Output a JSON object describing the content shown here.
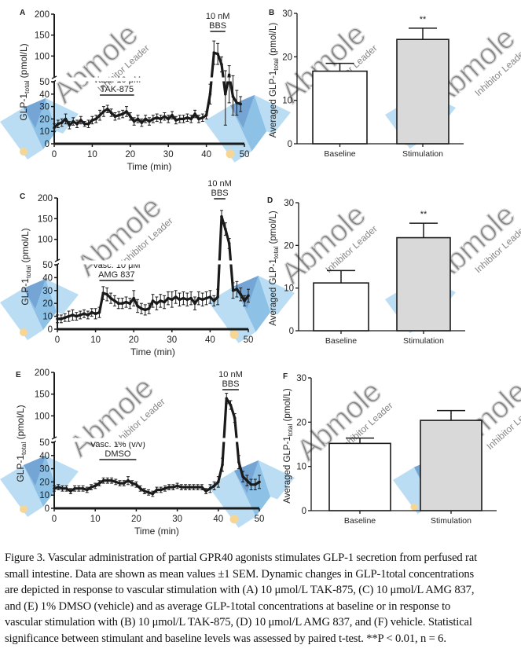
{
  "chart_data": [
    {
      "panel": "A",
      "type": "line",
      "xlabel": "Time (min)",
      "ylabel": "GLP-1total (pmol/L)",
      "ylabel_main": "GLP-1",
      "ylabel_sub": "total",
      "ylabel_unit": " (pmol/L)",
      "xlim": [
        0,
        50
      ],
      "xticks": [
        "0",
        "10",
        "20",
        "30",
        "40",
        "50"
      ],
      "ylim": [
        0,
        200
      ],
      "y_axis_break": [
        50,
        50
      ],
      "yticks_lower": [
        "0",
        "10",
        "20",
        "30",
        "40",
        "50"
      ],
      "yticks_upper": [
        "100",
        "150",
        "200"
      ],
      "annotations": [
        {
          "text_lines": [
            "Vasc. 10 μM",
            "TAK-875"
          ],
          "x_range": [
            12,
            21
          ]
        },
        {
          "text_lines": [
            "10 nM",
            "BBS"
          ],
          "x_range": [
            41,
            45
          ]
        }
      ],
      "x": [
        0,
        1,
        2,
        3,
        4,
        5,
        6,
        7,
        8,
        9,
        10,
        11,
        12,
        13,
        14,
        15,
        16,
        17,
        18,
        19,
        20,
        21,
        22,
        23,
        24,
        25,
        26,
        27,
        28,
        29,
        30,
        31,
        32,
        33,
        34,
        35,
        36,
        37,
        38,
        39,
        40,
        41,
        42,
        43,
        44,
        45,
        46,
        47,
        48,
        49
      ],
      "y": [
        13,
        16,
        17,
        20,
        15,
        18,
        16,
        19,
        16,
        16,
        19,
        20,
        23,
        26,
        28,
        25,
        22,
        23,
        24,
        26,
        22,
        18,
        20,
        17,
        20,
        18,
        20,
        21,
        20,
        22,
        20,
        23,
        19,
        20,
        20,
        21,
        20,
        24,
        20,
        21,
        23,
        40,
        108,
        105,
        80,
        40,
        55,
        38,
        33,
        32
      ],
      "sem": [
        3,
        3,
        3,
        4,
        3,
        3,
        3,
        3,
        2,
        3,
        3,
        3,
        4,
        4,
        3,
        3,
        3,
        3,
        3,
        4,
        3,
        3,
        3,
        3,
        3,
        3,
        3,
        3,
        3,
        3,
        3,
        3,
        3,
        3,
        3,
        3,
        3,
        3,
        3,
        3,
        3,
        8,
        28,
        25,
        18,
        25,
        22,
        15,
        10,
        6
      ]
    },
    {
      "panel": "B",
      "type": "bar",
      "categories": [
        "Baseline",
        "Stimulation"
      ],
      "values": [
        16.7,
        24.0
      ],
      "sem": [
        1.8,
        2.6
      ],
      "colors": [
        "#ffffff",
        "#d9d9d9"
      ],
      "significance": [
        null,
        "**"
      ],
      "ylabel": "Averaged GLP-1total (pmol/L)",
      "ylabel_main": "Averaged GLP-1",
      "ylabel_sub": "total",
      "ylabel_unit": " (pmol/L)",
      "ylim": [
        0,
        30
      ],
      "yticks": [
        "0",
        "10",
        "20",
        "30"
      ]
    },
    {
      "panel": "C",
      "type": "line",
      "xlabel": "Time (min)",
      "ylabel": "GLP-1total (pmol/L)",
      "ylabel_main": "GLP-1",
      "ylabel_sub": "total",
      "ylabel_unit": " (pmol/L)",
      "xlim": [
        0,
        50
      ],
      "xticks": [
        "0",
        "10",
        "20",
        "30",
        "40",
        "50"
      ],
      "ylim": [
        0,
        200
      ],
      "y_axis_break": [
        50,
        50
      ],
      "yticks_lower": [
        "0",
        "10",
        "20",
        "30",
        "40",
        "50"
      ],
      "yticks_upper": [
        "100",
        "150",
        "200"
      ],
      "annotations": [
        {
          "text_lines": [
            "Vasc. 10 μM",
            "AMG 837"
          ],
          "x_range": [
            11,
            20
          ]
        },
        {
          "text_lines": [
            "10 nM",
            "BBS"
          ],
          "x_range": [
            41,
            44
          ]
        }
      ],
      "x": [
        0,
        1,
        2,
        3,
        4,
        5,
        6,
        7,
        8,
        9,
        10,
        11,
        12,
        13,
        14,
        15,
        16,
        17,
        18,
        19,
        20,
        21,
        22,
        23,
        24,
        25,
        26,
        27,
        28,
        29,
        30,
        31,
        32,
        33,
        34,
        35,
        36,
        37,
        38,
        39,
        40,
        41,
        42,
        43,
        44,
        45,
        46,
        47,
        48,
        49,
        50
      ],
      "y": [
        8,
        8,
        9,
        10,
        11,
        10,
        11,
        12,
        11,
        13,
        12,
        13,
        28,
        27,
        24,
        22,
        20,
        20,
        21,
        20,
        24,
        18,
        16,
        15,
        16,
        22,
        20,
        22,
        21,
        24,
        23,
        25,
        23,
        24,
        23,
        24,
        20,
        24,
        23,
        24,
        25,
        22,
        25,
        155,
        125,
        90,
        30,
        31,
        27,
        22,
        26
      ],
      "sem": [
        3,
        3,
        3,
        4,
        4,
        3,
        3,
        3,
        3,
        3,
        4,
        4,
        5,
        5,
        4,
        4,
        4,
        4,
        4,
        4,
        6,
        5,
        4,
        4,
        4,
        5,
        5,
        5,
        5,
        5,
        6,
        5,
        5,
        5,
        5,
        5,
        5,
        5,
        5,
        5,
        5,
        4,
        6,
        15,
        15,
        12,
        6,
        6,
        5,
        4,
        5
      ]
    },
    {
      "panel": "D",
      "type": "bar",
      "categories": [
        "Baseline",
        "Stimulation"
      ],
      "values": [
        11.2,
        21.8
      ],
      "sem": [
        2.9,
        3.4
      ],
      "colors": [
        "#ffffff",
        "#d9d9d9"
      ],
      "significance": [
        null,
        "**"
      ],
      "ylabel": "Averaged GLP-1total (pmol/L)",
      "ylabel_main": "Averaged GLP-1",
      "ylabel_sub": "total",
      "ylabel_unit": " (pmol/L)",
      "ylim": [
        0,
        30
      ],
      "yticks": [
        "0",
        "10",
        "20",
        "30"
      ]
    },
    {
      "panel": "E",
      "type": "line",
      "xlabel": "Time (min)",
      "ylabel": "GLP-1total (pmol/L)",
      "ylabel_main": "GLP-1",
      "ylabel_sub": "total",
      "ylabel_unit": " (pmol/L)",
      "xlim": [
        0,
        50
      ],
      "xticks": [
        "0",
        "10",
        "20",
        "30",
        "40",
        "50"
      ],
      "ylim": [
        0,
        200
      ],
      "y_axis_break": [
        50,
        50
      ],
      "yticks_lower": [
        "0",
        "10",
        "20",
        "30",
        "40",
        "50"
      ],
      "yticks_upper": [
        "100",
        "150",
        "200"
      ],
      "annotations": [
        {
          "text_lines": [
            "Vasc. 1% (v/v)",
            "DMSO"
          ],
          "x_range": [
            11,
            20
          ]
        },
        {
          "text_lines": [
            "10 nM",
            "BBS"
          ],
          "x_range": [
            41,
            45
          ]
        }
      ],
      "x": [
        0,
        1,
        2,
        3,
        4,
        5,
        6,
        7,
        8,
        9,
        10,
        11,
        12,
        13,
        14,
        15,
        16,
        17,
        18,
        19,
        20,
        21,
        22,
        23,
        24,
        25,
        26,
        27,
        28,
        29,
        30,
        31,
        32,
        33,
        34,
        35,
        36,
        37,
        38,
        39,
        40,
        41,
        42,
        43,
        44,
        45,
        46,
        47,
        48,
        49,
        50
      ],
      "y": [
        15,
        16,
        15,
        15,
        13,
        15,
        15,
        15,
        14,
        16,
        17,
        19,
        21,
        21,
        21,
        20,
        19,
        19,
        21,
        19,
        18,
        15,
        13,
        12,
        11,
        14,
        14,
        15,
        16,
        16,
        17,
        16,
        16,
        16,
        16,
        16,
        16,
        13,
        15,
        17,
        20,
        33,
        140,
        125,
        95,
        35,
        24,
        21,
        18,
        18,
        20
      ],
      "sem": [
        2,
        2,
        2,
        2,
        2,
        2,
        2,
        2,
        2,
        2,
        2,
        2,
        2,
        2,
        2,
        2,
        2,
        2,
        3,
        2,
        2,
        2,
        2,
        2,
        2,
        2,
        2,
        2,
        2,
        2,
        2,
        2,
        2,
        2,
        2,
        2,
        2,
        2,
        3,
        3,
        4,
        5,
        12,
        10,
        10,
        5,
        4,
        4,
        4,
        4,
        5
      ]
    },
    {
      "panel": "F",
      "type": "bar",
      "categories": [
        "Baseline",
        "Stimulation"
      ],
      "values": [
        15.2,
        20.4
      ],
      "sem": [
        1.2,
        2.2
      ],
      "colors": [
        "#ffffff",
        "#d9d9d9"
      ],
      "significance": [
        null,
        null
      ],
      "ylabel": "Averaged GLP-1total (pmol/L)",
      "ylabel_main": "Averaged GLP-1",
      "ylabel_sub": "total",
      "ylabel_unit": " (pmol/L)",
      "ylim": [
        0,
        30
      ],
      "yticks": [
        "0",
        "10",
        "20",
        "30"
      ]
    }
  ],
  "caption": {
    "lines": [
      "Figure 3. Vascular administration of partial GPR40 agonists stimulates GLP-1 secretion from perfused rat",
      "small intestine. Data are shown as mean values ±1 SEM. Dynamic changes in GLP-1total concentrations",
      "are depicted in response to vascular stimulation with (A) 10 μmol/L TAK-875, (C) 10 μmol/L AMG 837,",
      "and (E) 1% DMSO (vehicle) and as average GLP-1total concentrations at baseline or in response to",
      "vascular stimulation with (B) 10 μmol/L TAK-875, (D) 10 μmol/L AMG 837, and (F) vehicle. Statistical",
      "significance between stimulant and baseline levels was assessed by paired t-test. **P < 0.01, n = 6."
    ]
  },
  "watermark": {
    "brand": "Abmole",
    "tagline": "Inhibitor Leader",
    "colors": {
      "text": "#b8b8b8",
      "logo_light": "#9fd0ef",
      "logo_mid": "#5ea8dc",
      "logo_dark": "#3a7fc2",
      "dot": "#f3c56b"
    }
  },
  "colors": {
    "line": "#1a1a1a",
    "axis": "#1a1a1a",
    "bar_edge": "#1a1a1a"
  }
}
